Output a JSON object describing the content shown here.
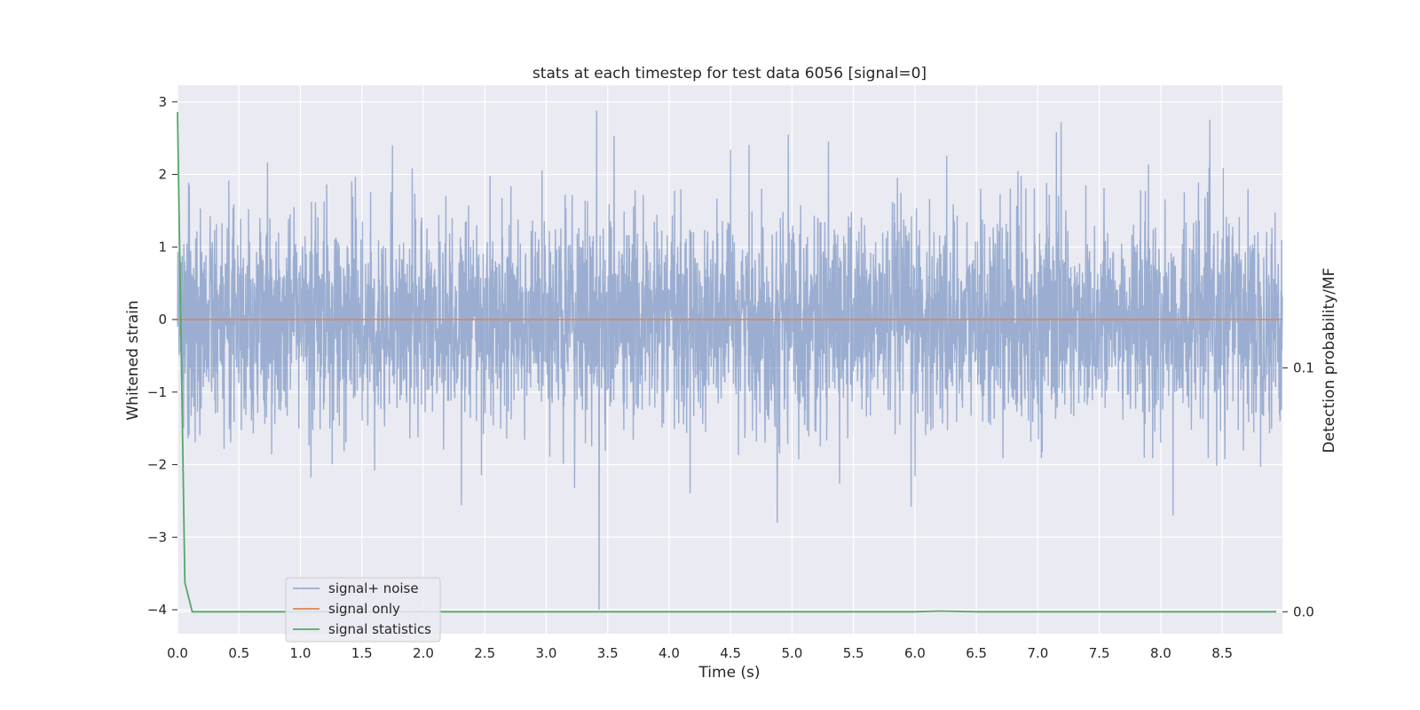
{
  "chart_data": {
    "type": "line",
    "title": "stats at each timestep for test data 6056 [signal=0]",
    "xlabel": "Time (s)",
    "ylabel": "Whitened strain",
    "y2label": "Detection probability/MF",
    "xlim": [
      0.0,
      8.99
    ],
    "ylim": [
      -4.33,
      3.23
    ],
    "y2lim": [
      -0.009,
      0.216
    ],
    "x_ticks": [
      "0.0",
      "0.5",
      "1.0",
      "1.5",
      "2.0",
      "2.5",
      "3.0",
      "3.5",
      "4.0",
      "4.5",
      "5.0",
      "5.5",
      "6.0",
      "6.5",
      "7.0",
      "7.5",
      "8.0",
      "8.5"
    ],
    "y_ticks": [
      "3",
      "2",
      "1",
      "0",
      "−1",
      "−2",
      "−3",
      "−4"
    ],
    "y2_ticks": [
      "0.1",
      "0.0"
    ],
    "grid": true,
    "legend_position": "lower-left",
    "series": [
      {
        "name": "signal+ noise",
        "color": "#4c72b0",
        "alpha": 0.5,
        "axis": "left",
        "description_values": {
          "x_range": [
            0.0,
            8.99
          ],
          "typical_amplitude": 1.0,
          "max": 2.88,
          "min": -4.0
        },
        "peaks": [
          {
            "x": 3.41,
            "y": 2.88
          },
          {
            "x": 3.43,
            "y": -4.0
          },
          {
            "x": 7.19,
            "y": 2.72
          },
          {
            "x": 4.97,
            "y": 2.55
          },
          {
            "x": 7.15,
            "y": 2.58
          },
          {
            "x": 2.31,
            "y": -2.56
          },
          {
            "x": 4.88,
            "y": -2.8
          },
          {
            "x": 5.97,
            "y": -2.58
          },
          {
            "x": 8.1,
            "y": -2.7
          },
          {
            "x": 1.75,
            "y": 2.4
          },
          {
            "x": 0.05,
            "y": -1.5
          }
        ]
      },
      {
        "name": "signal only",
        "color": "#dd8452",
        "axis": "left",
        "x": [
          0.0,
          8.99
        ],
        "values": [
          0.0,
          0.0
        ]
      },
      {
        "name": "signal statistics",
        "color": "#55a868",
        "axis": "right",
        "x": [
          0.0,
          0.06,
          0.12,
          0.5,
          1.0,
          2.0,
          3.0,
          4.0,
          5.0,
          6.0,
          6.2,
          6.5,
          7.0,
          8.0,
          8.94
        ],
        "values": [
          0.205,
          0.012,
          0.0,
          0.0,
          0.0,
          0.0,
          0.0,
          0.0,
          0.0,
          0.0,
          0.0003,
          0.0,
          0.0,
          0.0,
          0.0
        ]
      }
    ]
  }
}
